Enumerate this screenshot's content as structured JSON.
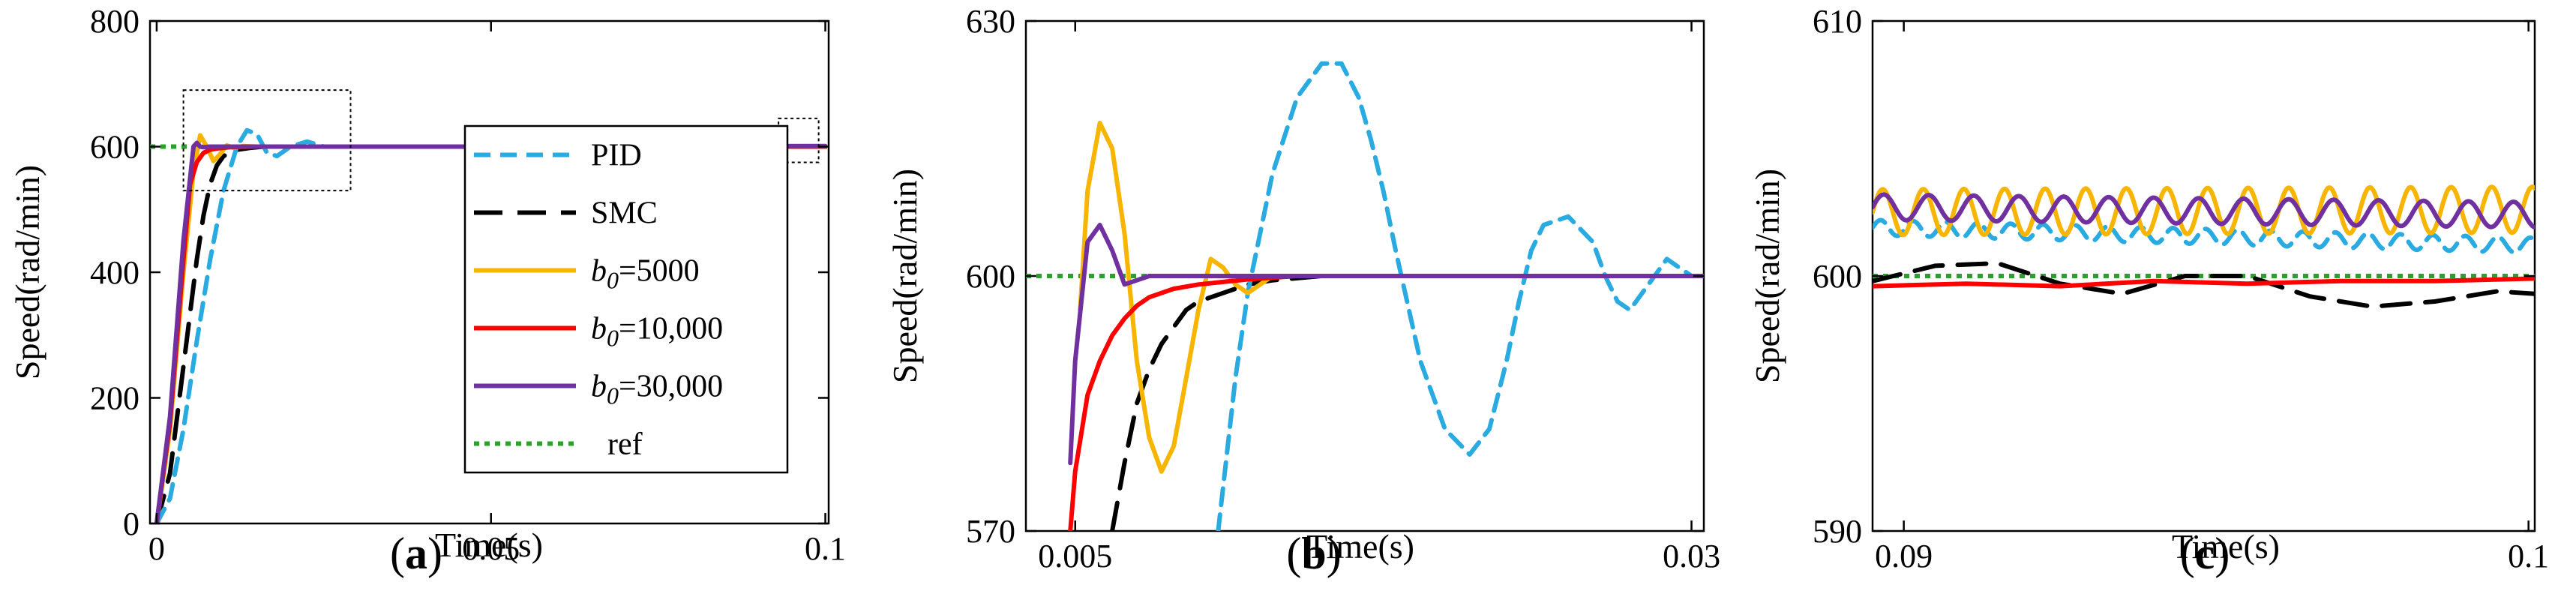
{
  "colors": {
    "PID": "#29ABE2",
    "SMC": "#000000",
    "b0_5000": "#F7B500",
    "b0_10000": "#FF0000",
    "b0_30000": "#7030A0",
    "ref": "#2CA02C"
  },
  "chart_data": [
    {
      "type": "line",
      "panel": "(a)",
      "caption_open": "(",
      "caption_letter": "a",
      "caption_close": ")",
      "xlabel": "Time(s)",
      "ylabel": "Speed(rad/min)",
      "xlim": [
        -0.001,
        0.1005
      ],
      "ylim": [
        0,
        800
      ],
      "xticks": [
        0,
        0.05,
        0.1
      ],
      "xtick_labels": [
        "0",
        "0.05",
        "0.1"
      ],
      "yticks": [
        0,
        200,
        400,
        600,
        800
      ],
      "ytick_labels": [
        "0",
        "200",
        "400",
        "600",
        "800"
      ],
      "zoom_boxes": [
        {
          "x0": 0.004,
          "x1": 0.029,
          "y0": 530,
          "y1": 690
        },
        {
          "x0": 0.093,
          "x1": 0.099,
          "y0": 575,
          "y1": 645
        }
      ],
      "legend": {
        "position": "bottom-right",
        "entries": [
          {
            "key": "PID",
            "label": "PID",
            "sub": ""
          },
          {
            "key": "SMC",
            "label": "SMC",
            "sub": ""
          },
          {
            "key": "b0_5000",
            "label": "b",
            "sub": "0",
            "value": "=5000"
          },
          {
            "key": "b0_10000",
            "label": "b",
            "sub": "0",
            "value": "=10,000"
          },
          {
            "key": "b0_30000",
            "label": "b",
            "sub": "0",
            "value": "=30,000"
          },
          {
            "key": "ref",
            "label": "ref",
            "sub": ""
          }
        ]
      },
      "series": [
        {
          "key": "ref",
          "name": "ref",
          "x": [
            -0.001,
            0.1005
          ],
          "y": [
            600,
            600
          ]
        },
        {
          "key": "PID",
          "name": "PID",
          "x": [
            0,
            0.002,
            0.004,
            0.006,
            0.008,
            0.01,
            0.012,
            0.0135,
            0.015,
            0.0165,
            0.018,
            0.02,
            0.0225,
            0.025,
            0.03,
            0.05,
            0.07,
            0.1
          ],
          "y": [
            0,
            40,
            150,
            290,
            420,
            530,
            600,
            626,
            620,
            590,
            585,
            600,
            608,
            600,
            600,
            600,
            600,
            600
          ]
        },
        {
          "key": "SMC",
          "name": "SMC",
          "x": [
            0,
            0.002,
            0.004,
            0.006,
            0.007,
            0.008,
            0.009,
            0.01,
            0.012,
            0.014,
            0.016,
            0.02,
            0.05,
            0.1
          ],
          "y": [
            0,
            80,
            250,
            420,
            490,
            540,
            570,
            585,
            595,
            598,
            600,
            600,
            600,
            600
          ]
        },
        {
          "key": "b0_5000",
          "name": "b0=5000",
          "x": [
            0,
            0.002,
            0.004,
            0.0055,
            0.0065,
            0.0075,
            0.0085,
            0.0095,
            0.0105,
            0.0115,
            0.013,
            0.015,
            0.02,
            0.05,
            0.1
          ],
          "y": [
            0,
            150,
            400,
            560,
            618,
            600,
            577,
            588,
            602,
            598,
            601,
            600,
            600,
            600,
            600
          ]
        },
        {
          "key": "b0_10000",
          "name": "b0=10,000",
          "x": [
            0,
            0.002,
            0.004,
            0.005,
            0.006,
            0.007,
            0.008,
            0.009,
            0.011,
            0.015,
            0.02,
            0.05,
            0.1
          ],
          "y": [
            0,
            160,
            420,
            540,
            575,
            590,
            595,
            597,
            599,
            600,
            600,
            600,
            600
          ]
        },
        {
          "key": "b0_30000",
          "name": "b0=30,000",
          "x": [
            0,
            0.002,
            0.004,
            0.0055,
            0.006,
            0.0065,
            0.007,
            0.008,
            0.01,
            0.02,
            0.05,
            0.1
          ],
          "y": [
            0,
            170,
            450,
            600,
            606,
            600,
            599,
            600,
            600,
            600,
            600,
            601
          ]
        }
      ]
    },
    {
      "type": "line",
      "panel": "(b)",
      "caption_open": "(",
      "caption_letter": "b",
      "caption_close": ")",
      "xlabel": "Time(s)",
      "ylabel": "Speed(rad/min)",
      "xlim": [
        0.003,
        0.0305
      ],
      "ylim": [
        570,
        630
      ],
      "xticks": [
        0.005,
        0.03
      ],
      "xtick_labels": [
        "0.005",
        "0.03"
      ],
      "yticks": [
        570,
        600,
        630
      ],
      "ytick_labels": [
        "570",
        "600",
        "630"
      ],
      "series": [
        {
          "key": "ref",
          "name": "ref",
          "x": [
            0.003,
            0.0305
          ],
          "y": [
            600,
            600
          ]
        },
        {
          "key": "PID",
          "name": "PID",
          "x": [
            0.0108,
            0.0115,
            0.012,
            0.013,
            0.014,
            0.015,
            0.0158,
            0.0165,
            0.017,
            0.0175,
            0.018,
            0.019,
            0.02,
            0.021,
            0.0218,
            0.0225,
            0.023,
            0.0235,
            0.024,
            0.025,
            0.026,
            0.0265,
            0.027,
            0.0275,
            0.028,
            0.0285,
            0.029,
            0.0295,
            0.03,
            0.0305
          ],
          "y": [
            570,
            588,
            598,
            612,
            621,
            625,
            625,
            621,
            616,
            610,
            603,
            590,
            582,
            579,
            582,
            590,
            597,
            603,
            606,
            607,
            604,
            600,
            597,
            596,
            598,
            600,
            602,
            601,
            600,
            600
          ]
        },
        {
          "key": "SMC",
          "name": "SMC",
          "x": [
            0.0065,
            0.007,
            0.0075,
            0.008,
            0.0085,
            0.009,
            0.0095,
            0.01,
            0.011,
            0.012,
            0.013,
            0.015,
            0.02,
            0.025,
            0.0305
          ],
          "y": [
            570,
            578,
            585,
            589,
            592,
            594,
            596,
            597,
            598,
            599,
            599.5,
            600,
            600,
            600,
            600
          ]
        },
        {
          "key": "b0_5000",
          "name": "b0=5000",
          "x": [
            0.0052,
            0.0055,
            0.006,
            0.0065,
            0.007,
            0.0075,
            0.008,
            0.0085,
            0.009,
            0.0095,
            0.01,
            0.0105,
            0.011,
            0.0115,
            0.012,
            0.013,
            0.014,
            0.015,
            0.02,
            0.025,
            0.0305
          ],
          "y": [
            596,
            610,
            618,
            615,
            605,
            590,
            581,
            577,
            580,
            588,
            596,
            602,
            601,
            599,
            598,
            600,
            600,
            600,
            600,
            600,
            600
          ]
        },
        {
          "key": "b0_10000",
          "name": "b0=10,000",
          "x": [
            0.0048,
            0.005,
            0.0055,
            0.006,
            0.0065,
            0.007,
            0.0075,
            0.008,
            0.009,
            0.01,
            0.011,
            0.012,
            0.014,
            0.02,
            0.025,
            0.0305
          ],
          "y": [
            570,
            577,
            586,
            590,
            593,
            595,
            596.5,
            597.5,
            598.5,
            599,
            599.3,
            599.6,
            600,
            600,
            600,
            600
          ]
        },
        {
          "key": "b0_30000",
          "name": "b0=30,000",
          "x": [
            0.0048,
            0.005,
            0.0055,
            0.006,
            0.0065,
            0.007,
            0.0075,
            0.008,
            0.009,
            0.01,
            0.015,
            0.02,
            0.025,
            0.0305
          ],
          "y": [
            578,
            590,
            604,
            606,
            603,
            599,
            599.5,
            600,
            600,
            600,
            600,
            600,
            600,
            600
          ]
        }
      ]
    },
    {
      "type": "line",
      "panel": "(c)",
      "caption_open": "(",
      "caption_letter": "c",
      "caption_close": ")",
      "xlabel": "Time(s)",
      "ylabel": "Speed(rad/min)",
      "xlim": [
        0.0895,
        0.1001
      ],
      "ylim": [
        590,
        610
      ],
      "xticks": [
        0.09,
        0.1
      ],
      "xtick_labels": [
        "0.09",
        "0.1"
      ],
      "yticks": [
        590,
        600,
        610
      ],
      "ytick_labels": [
        "590",
        "600",
        "610"
      ],
      "series": [
        {
          "key": "ref",
          "name": "ref",
          "x": [
            0.0895,
            0.1001
          ],
          "y": [
            600,
            600
          ]
        },
        {
          "key": "SMC",
          "name": "SMC",
          "x": [
            0.0895,
            0.0905,
            0.0915,
            0.0925,
            0.0935,
            0.0945,
            0.0955,
            0.0965,
            0.0975,
            0.0985,
            0.0995,
            0.1001
          ],
          "y": [
            599.8,
            600.4,
            600.5,
            599.7,
            599.3,
            600.0,
            600.0,
            599.2,
            598.8,
            599.0,
            599.4,
            599.3
          ]
        },
        {
          "key": "b0_10000",
          "name": "b0=10,000",
          "x": [
            0.0895,
            0.091,
            0.0925,
            0.094,
            0.0955,
            0.097,
            0.0985,
            0.1001
          ],
          "y": [
            599.6,
            599.7,
            599.6,
            599.8,
            599.7,
            599.8,
            599.8,
            599.9
          ]
        },
        {
          "key": "PID",
          "name": "PID",
          "osc": {
            "start": 601.9,
            "end": 601.2,
            "amp": 0.3,
            "period": 0.00052
          }
        },
        {
          "key": "b0_5000",
          "name": "b0=5000",
          "osc": {
            "start": 602.5,
            "end": 602.6,
            "amp": 0.9,
            "period": 0.00065
          }
        },
        {
          "key": "b0_30000",
          "name": "b0=30,000",
          "osc": {
            "start": 602.7,
            "end": 602.4,
            "amp": 0.5,
            "period": 0.00072
          }
        }
      ]
    }
  ]
}
